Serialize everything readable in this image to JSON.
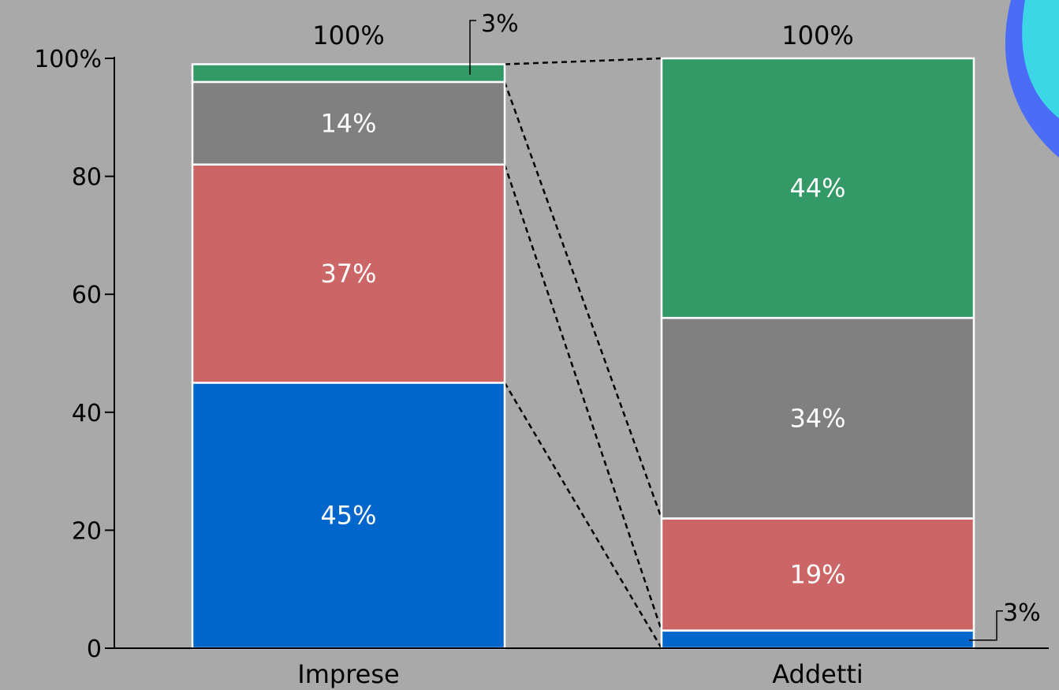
{
  "chart_data": {
    "type": "bar",
    "stacked": true,
    "categories": [
      "Imprese",
      "Addetti"
    ],
    "series": [
      {
        "values": [
          45,
          3
        ],
        "labels": [
          "45%",
          "3%"
        ],
        "color": "#0066cc"
      },
      {
        "values": [
          37,
          19
        ],
        "labels": [
          "37%",
          "19%"
        ],
        "color": "#cc6666"
      },
      {
        "values": [
          14,
          34
        ],
        "labels": [
          "14%",
          "34%"
        ],
        "color": "#808080"
      },
      {
        "values": [
          3,
          44
        ],
        "labels": [
          "3%",
          "44%"
        ],
        "color": "#339966"
      }
    ],
    "totals": [
      "100%",
      "100%"
    ],
    "ylim": [
      0,
      100
    ],
    "yticks": [
      {
        "value": 0,
        "label": "0"
      },
      {
        "value": 20,
        "label": "20"
      },
      {
        "value": 40,
        "label": "40"
      },
      {
        "value": 60,
        "label": "60"
      },
      {
        "value": 80,
        "label": "80"
      },
      {
        "value": 100,
        "label": "100%"
      }
    ],
    "grid": false,
    "connector_lines": true,
    "xlabel": "",
    "ylabel": ""
  },
  "background_color": "#a9a9a9",
  "decoration_colors": [
    "#4a6cf7",
    "#3dd6e6"
  ]
}
